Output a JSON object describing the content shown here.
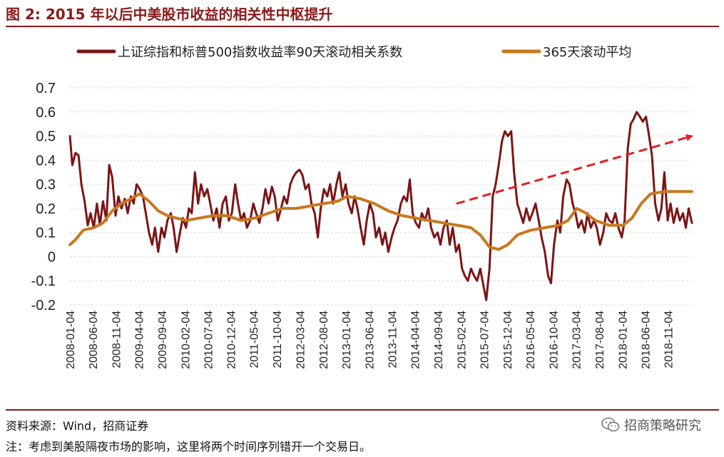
{
  "figure": {
    "title": "图 2:  2015 年以后中美股市收益的相关性中枢提升",
    "source": "资料来源：Wind，招商证券",
    "note": "注：考虑到美股隔夜市场的影响，这里将两个时间序列错开一个交易日。",
    "watermark": "招商策略研究",
    "watermark_icon": "wechat-icon"
  },
  "colors": {
    "title": "#8b1a1a",
    "series_corr": "#7b1515",
    "series_avg": "#c8781e",
    "trend_arrow": "#e02020",
    "grid": "#d9d9d9"
  },
  "chart_data": {
    "type": "line",
    "title": "",
    "xlabel": "",
    "ylabel": "",
    "ylim": [
      -0.2,
      0.7
    ],
    "yticks": [
      "0.7",
      "0.6",
      "0.5",
      "0.4",
      "0.3",
      "0.2",
      "0.1",
      "0",
      "-0.1",
      "-0.2"
    ],
    "grid": "horizontal dashed",
    "legend_position": "top",
    "x_tick_labels": [
      "2008-01-04",
      "2008-06-04",
      "2008-11-04",
      "2009-04-04",
      "2009-09-04",
      "2010-02-04",
      "2010-07-04",
      "2010-12-04",
      "2011-05-04",
      "2011-10-04",
      "2012-03-04",
      "2012-08-04",
      "2013-01-04",
      "2013-06-04",
      "2013-11-04",
      "2014-04-04",
      "2014-09-04",
      "2015-02-04",
      "2015-07-04",
      "2015-12-04",
      "2016-05-04",
      "2016-10-04",
      "2017-03-04",
      "2017-08-04",
      "2018-01-04",
      "2018-06-04",
      "2018-11-04"
    ],
    "series": [
      {
        "name": "上证综指和标普500指数收益率90天滚动相关系数",
        "points": [
          [
            "2008-01-04",
            0.5
          ],
          [
            "2008-01-20",
            0.38
          ],
          [
            "2008-02-10",
            0.43
          ],
          [
            "2008-03-01",
            0.42
          ],
          [
            "2008-03-20",
            0.3
          ],
          [
            "2008-04-10",
            0.23
          ],
          [
            "2008-05-01",
            0.13
          ],
          [
            "2008-05-20",
            0.18
          ],
          [
            "2008-06-10",
            0.12
          ],
          [
            "2008-07-01",
            0.22
          ],
          [
            "2008-07-20",
            0.13
          ],
          [
            "2008-08-10",
            0.23
          ],
          [
            "2008-09-01",
            0.15
          ],
          [
            "2008-09-20",
            0.38
          ],
          [
            "2008-10-10",
            0.33
          ],
          [
            "2008-11-01",
            0.17
          ],
          [
            "2008-11-20",
            0.25
          ],
          [
            "2008-12-10",
            0.2
          ],
          [
            "2009-01-01",
            0.24
          ],
          [
            "2009-01-20",
            0.18
          ],
          [
            "2009-02-10",
            0.25
          ],
          [
            "2009-03-01",
            0.22
          ],
          [
            "2009-03-20",
            0.3
          ],
          [
            "2009-04-10",
            0.28
          ],
          [
            "2009-05-01",
            0.25
          ],
          [
            "2009-05-20",
            0.18
          ],
          [
            "2009-06-10",
            0.1
          ],
          [
            "2009-07-01",
            0.05
          ],
          [
            "2009-07-20",
            0.12
          ],
          [
            "2009-08-10",
            0.02
          ],
          [
            "2009-09-01",
            0.12
          ],
          [
            "2009-09-20",
            0.08
          ],
          [
            "2009-10-10",
            0.15
          ],
          [
            "2009-11-01",
            0.18
          ],
          [
            "2009-11-20",
            0.12
          ],
          [
            "2009-12-10",
            0.02
          ],
          [
            "2010-01-01",
            0.1
          ],
          [
            "2010-01-20",
            0.16
          ],
          [
            "2010-02-10",
            0.12
          ],
          [
            "2010-03-01",
            0.2
          ],
          [
            "2010-03-20",
            0.18
          ],
          [
            "2010-04-10",
            0.35
          ],
          [
            "2010-05-01",
            0.22
          ],
          [
            "2010-05-20",
            0.3
          ],
          [
            "2010-06-10",
            0.25
          ],
          [
            "2010-07-01",
            0.28
          ],
          [
            "2010-07-20",
            0.22
          ],
          [
            "2010-08-10",
            0.15
          ],
          [
            "2010-09-01",
            0.2
          ],
          [
            "2010-09-20",
            0.12
          ],
          [
            "2010-10-10",
            0.22
          ],
          [
            "2010-11-01",
            0.25
          ],
          [
            "2010-11-20",
            0.15
          ],
          [
            "2010-12-10",
            0.18
          ],
          [
            "2011-01-01",
            0.3
          ],
          [
            "2011-01-20",
            0.22
          ],
          [
            "2011-02-10",
            0.15
          ],
          [
            "2011-03-01",
            0.18
          ],
          [
            "2011-03-20",
            0.12
          ],
          [
            "2011-04-10",
            0.15
          ],
          [
            "2011-05-01",
            0.22
          ],
          [
            "2011-05-20",
            0.18
          ],
          [
            "2011-06-10",
            0.14
          ],
          [
            "2011-07-01",
            0.2
          ],
          [
            "2011-07-20",
            0.28
          ],
          [
            "2011-08-10",
            0.22
          ],
          [
            "2011-09-01",
            0.29
          ],
          [
            "2011-09-20",
            0.25
          ],
          [
            "2011-10-10",
            0.15
          ],
          [
            "2011-11-01",
            0.2
          ],
          [
            "2011-11-20",
            0.25
          ],
          [
            "2011-12-10",
            0.22
          ],
          [
            "2012-01-01",
            0.3
          ],
          [
            "2012-01-20",
            0.33
          ],
          [
            "2012-02-10",
            0.35
          ],
          [
            "2012-03-01",
            0.36
          ],
          [
            "2012-03-20",
            0.34
          ],
          [
            "2012-04-10",
            0.28
          ],
          [
            "2012-05-01",
            0.3
          ],
          [
            "2012-05-20",
            0.22
          ],
          [
            "2012-06-10",
            0.18
          ],
          [
            "2012-07-01",
            0.08
          ],
          [
            "2012-07-20",
            0.2
          ],
          [
            "2012-08-10",
            0.28
          ],
          [
            "2012-09-01",
            0.25
          ],
          [
            "2012-09-20",
            0.3
          ],
          [
            "2012-10-10",
            0.22
          ],
          [
            "2012-11-01",
            0.3
          ],
          [
            "2012-11-20",
            0.35
          ],
          [
            "2012-12-10",
            0.25
          ],
          [
            "2013-01-01",
            0.3
          ],
          [
            "2013-01-20",
            0.22
          ],
          [
            "2013-02-10",
            0.18
          ],
          [
            "2013-03-01",
            0.25
          ],
          [
            "2013-03-20",
            0.2
          ],
          [
            "2013-04-10",
            0.12
          ],
          [
            "2013-05-01",
            0.05
          ],
          [
            "2013-05-20",
            0.15
          ],
          [
            "2013-06-10",
            0.22
          ],
          [
            "2013-07-01",
            0.18
          ],
          [
            "2013-07-20",
            0.08
          ],
          [
            "2013-08-10",
            0.12
          ],
          [
            "2013-09-01",
            0.05
          ],
          [
            "2013-09-20",
            0.1
          ],
          [
            "2013-10-10",
            0.02
          ],
          [
            "2013-11-01",
            0.08
          ],
          [
            "2013-11-20",
            0.12
          ],
          [
            "2013-12-10",
            0.15
          ],
          [
            "2014-01-01",
            0.22
          ],
          [
            "2014-01-20",
            0.25
          ],
          [
            "2014-02-10",
            0.23
          ],
          [
            "2014-03-01",
            0.32
          ],
          [
            "2014-03-20",
            0.18
          ],
          [
            "2014-04-10",
            0.14
          ],
          [
            "2014-05-01",
            0.12
          ],
          [
            "2014-05-20",
            0.18
          ],
          [
            "2014-06-10",
            0.15
          ],
          [
            "2014-07-01",
            0.2
          ],
          [
            "2014-07-20",
            0.12
          ],
          [
            "2014-08-10",
            0.08
          ],
          [
            "2014-09-01",
            0.1
          ],
          [
            "2014-09-20",
            0.05
          ],
          [
            "2014-10-10",
            0.12
          ],
          [
            "2014-11-01",
            0.15
          ],
          [
            "2014-11-20",
            0.05
          ],
          [
            "2014-12-10",
            0.12
          ],
          [
            "2015-01-01",
            0.02
          ],
          [
            "2015-01-20",
            0.05
          ],
          [
            "2015-02-10",
            -0.05
          ],
          [
            "2015-03-01",
            -0.08
          ],
          [
            "2015-03-20",
            -0.1
          ],
          [
            "2015-04-10",
            -0.05
          ],
          [
            "2015-05-01",
            -0.08
          ],
          [
            "2015-05-20",
            -0.1
          ],
          [
            "2015-06-10",
            -0.05
          ],
          [
            "2015-07-01",
            -0.12
          ],
          [
            "2015-07-20",
            -0.18
          ],
          [
            "2015-08-10",
            -0.05
          ],
          [
            "2015-09-01",
            0.25
          ],
          [
            "2015-09-20",
            0.3
          ],
          [
            "2015-10-10",
            0.38
          ],
          [
            "2015-11-01",
            0.48
          ],
          [
            "2015-11-20",
            0.52
          ],
          [
            "2015-12-10",
            0.5
          ],
          [
            "2016-01-01",
            0.52
          ],
          [
            "2016-01-20",
            0.35
          ],
          [
            "2016-02-10",
            0.22
          ],
          [
            "2016-03-01",
            0.18
          ],
          [
            "2016-03-20",
            0.14
          ],
          [
            "2016-04-10",
            0.2
          ],
          [
            "2016-05-01",
            0.15
          ],
          [
            "2016-05-20",
            0.18
          ],
          [
            "2016-06-10",
            0.22
          ],
          [
            "2016-07-01",
            0.15
          ],
          [
            "2016-07-20",
            0.08
          ],
          [
            "2016-08-10",
            0.02
          ],
          [
            "2016-09-01",
            -0.08
          ],
          [
            "2016-09-20",
            -0.11
          ],
          [
            "2016-10-10",
            0.05
          ],
          [
            "2016-11-01",
            0.15
          ],
          [
            "2016-11-20",
            0.1
          ],
          [
            "2016-12-10",
            0.25
          ],
          [
            "2017-01-01",
            0.32
          ],
          [
            "2017-01-20",
            0.3
          ],
          [
            "2017-02-10",
            0.22
          ],
          [
            "2017-03-01",
            0.18
          ],
          [
            "2017-03-20",
            0.12
          ],
          [
            "2017-04-10",
            0.15
          ],
          [
            "2017-05-01",
            0.1
          ],
          [
            "2017-05-20",
            0.18
          ],
          [
            "2017-06-10",
            0.12
          ],
          [
            "2017-07-01",
            0.15
          ],
          [
            "2017-07-20",
            0.12
          ],
          [
            "2017-08-10",
            0.05
          ],
          [
            "2017-09-01",
            0.1
          ],
          [
            "2017-09-20",
            0.18
          ],
          [
            "2017-10-10",
            0.15
          ],
          [
            "2017-11-01",
            0.14
          ],
          [
            "2017-11-20",
            0.18
          ],
          [
            "2017-12-10",
            0.12
          ],
          [
            "2018-01-01",
            0.08
          ],
          [
            "2018-01-20",
            0.15
          ],
          [
            "2018-02-10",
            0.45
          ],
          [
            "2018-03-01",
            0.55
          ],
          [
            "2018-03-20",
            0.57
          ],
          [
            "2018-04-10",
            0.6
          ],
          [
            "2018-05-01",
            0.58
          ],
          [
            "2018-05-20",
            0.56
          ],
          [
            "2018-06-10",
            0.58
          ],
          [
            "2018-07-01",
            0.5
          ],
          [
            "2018-07-20",
            0.42
          ],
          [
            "2018-08-10",
            0.22
          ],
          [
            "2018-09-01",
            0.15
          ],
          [
            "2018-09-20",
            0.2
          ],
          [
            "2018-10-10",
            0.35
          ],
          [
            "2018-11-01",
            0.15
          ],
          [
            "2018-11-20",
            0.22
          ],
          [
            "2018-12-10",
            0.14
          ],
          [
            "2019-01-01",
            0.2
          ],
          [
            "2019-01-20",
            0.15
          ],
          [
            "2019-02-10",
            0.18
          ],
          [
            "2019-03-01",
            0.12
          ],
          [
            "2019-03-20",
            0.2
          ],
          [
            "2019-04-10",
            0.14
          ]
        ]
      },
      {
        "name": "365天滚动平均",
        "points": [
          [
            "2008-01-04",
            0.05
          ],
          [
            "2008-02-10",
            0.07
          ],
          [
            "2008-04-01",
            0.11
          ],
          [
            "2008-06-10",
            0.12
          ],
          [
            "2008-08-10",
            0.14
          ],
          [
            "2008-10-10",
            0.19
          ],
          [
            "2008-12-10",
            0.22
          ],
          [
            "2009-02-10",
            0.24
          ],
          [
            "2009-04-10",
            0.26
          ],
          [
            "2009-06-10",
            0.23
          ],
          [
            "2009-08-10",
            0.19
          ],
          [
            "2009-10-10",
            0.17
          ],
          [
            "2009-12-10",
            0.16
          ],
          [
            "2010-02-10",
            0.15
          ],
          [
            "2010-05-10",
            0.16
          ],
          [
            "2010-08-10",
            0.17
          ],
          [
            "2010-11-10",
            0.17
          ],
          [
            "2011-02-10",
            0.15
          ],
          [
            "2011-05-10",
            0.16
          ],
          [
            "2011-08-10",
            0.18
          ],
          [
            "2011-11-10",
            0.2
          ],
          [
            "2012-02-10",
            0.2
          ],
          [
            "2012-05-10",
            0.21
          ],
          [
            "2012-08-10",
            0.22
          ],
          [
            "2012-11-10",
            0.23
          ],
          [
            "2013-01-10",
            0.25
          ],
          [
            "2013-04-10",
            0.24
          ],
          [
            "2013-07-10",
            0.22
          ],
          [
            "2013-10-10",
            0.19
          ],
          [
            "2014-01-10",
            0.17
          ],
          [
            "2014-04-10",
            0.16
          ],
          [
            "2014-07-10",
            0.15
          ],
          [
            "2014-10-10",
            0.14
          ],
          [
            "2015-01-10",
            0.13
          ],
          [
            "2015-04-10",
            0.12
          ],
          [
            "2015-06-10",
            0.09
          ],
          [
            "2015-08-10",
            0.04
          ],
          [
            "2015-10-10",
            0.03
          ],
          [
            "2015-12-10",
            0.05
          ],
          [
            "2016-02-10",
            0.09
          ],
          [
            "2016-05-10",
            0.11
          ],
          [
            "2016-08-10",
            0.12
          ],
          [
            "2016-11-10",
            0.13
          ],
          [
            "2017-01-10",
            0.15
          ],
          [
            "2017-03-10",
            0.2
          ],
          [
            "2017-05-10",
            0.18
          ],
          [
            "2017-07-10",
            0.15
          ],
          [
            "2017-10-10",
            0.13
          ],
          [
            "2018-01-10",
            0.13
          ],
          [
            "2018-03-10",
            0.16
          ],
          [
            "2018-05-10",
            0.22
          ],
          [
            "2018-07-10",
            0.26
          ],
          [
            "2018-10-10",
            0.27
          ],
          [
            "2019-01-10",
            0.27
          ],
          [
            "2019-04-10",
            0.27
          ]
        ]
      }
    ],
    "trend_arrow": {
      "from": [
        "2015-01-04",
        0.22
      ],
      "to": [
        "2019-04-10",
        0.5
      ]
    }
  }
}
